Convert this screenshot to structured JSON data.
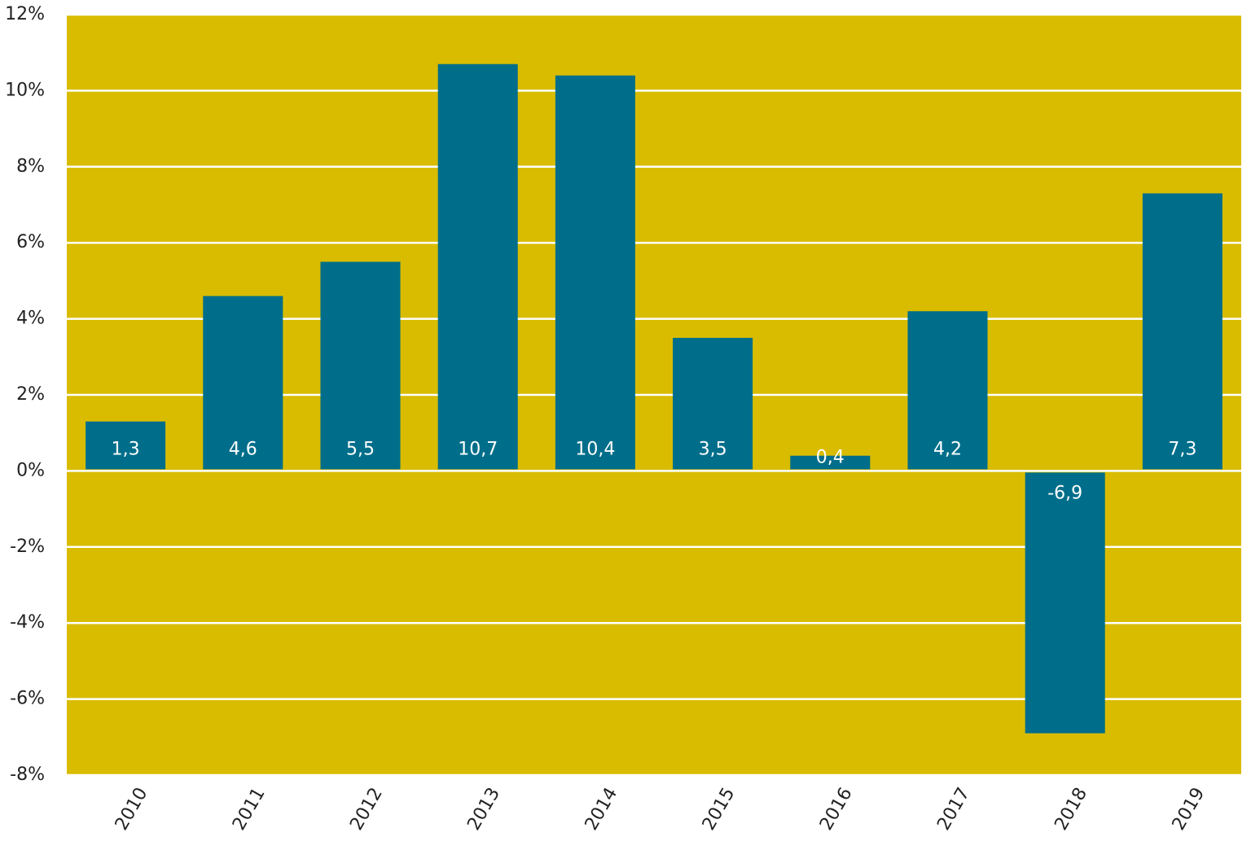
{
  "chart_data": {
    "type": "bar",
    "categories": [
      "2010",
      "2011",
      "2012",
      "2013",
      "2014",
      "2015",
      "2016",
      "2017",
      "2018",
      "2019"
    ],
    "values": [
      1.3,
      4.6,
      5.5,
      10.7,
      10.4,
      3.5,
      0.4,
      4.2,
      -6.9,
      7.3
    ],
    "value_labels": [
      "1,3",
      "4,6",
      "5,5",
      "10,7",
      "10,4",
      "3,5",
      "0,4",
      "4,2",
      "-6,9",
      "7,3"
    ],
    "color": "#006e8a",
    "background_color": "#d9bc00",
    "ylim": [
      -8,
      12
    ],
    "yticks": [
      {
        "value": -8,
        "label": "-8%"
      },
      {
        "value": -6,
        "label": "-6%"
      },
      {
        "value": -4,
        "label": "-4%"
      },
      {
        "value": -2,
        "label": "-2%"
      },
      {
        "value": 0,
        "label": "0%"
      },
      {
        "value": 2,
        "label": "2%"
      },
      {
        "value": 4,
        "label": "4%"
      },
      {
        "value": 6,
        "label": "6%"
      },
      {
        "value": 8,
        "label": "8%"
      },
      {
        "value": 10,
        "label": "10%"
      },
      {
        "value": 12,
        "label": "12%"
      }
    ],
    "grid": true
  }
}
